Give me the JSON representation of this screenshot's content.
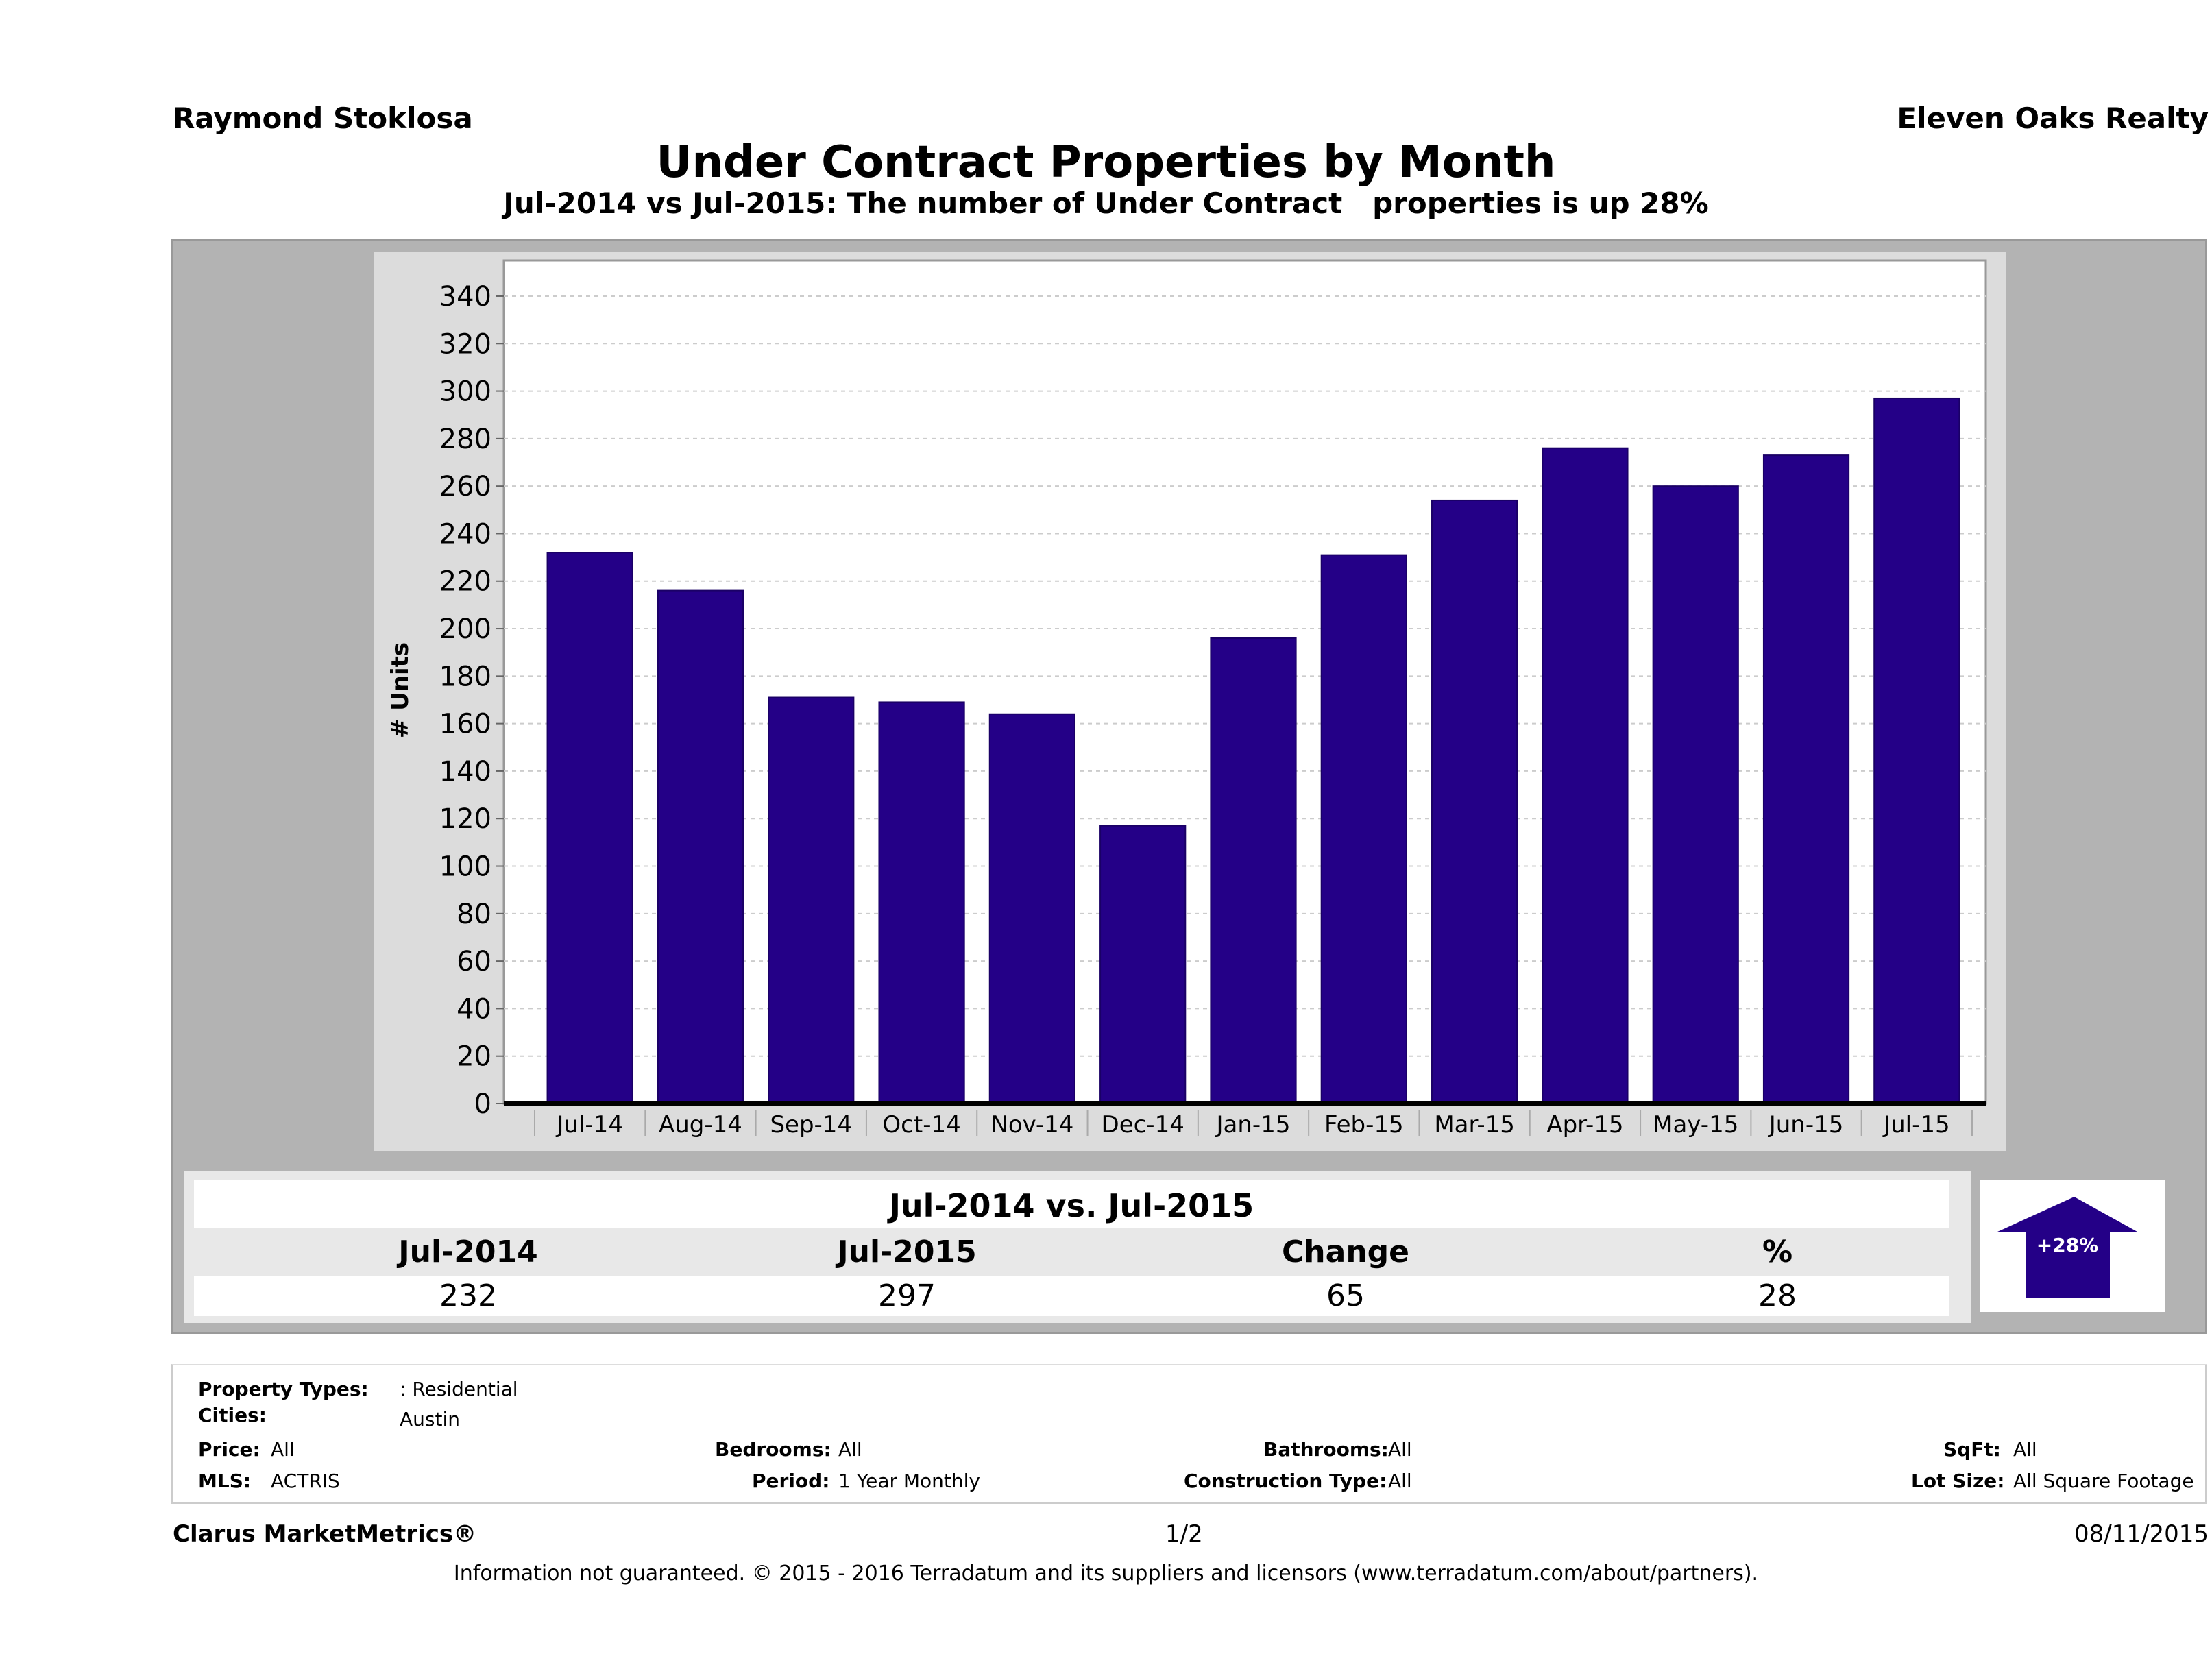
{
  "header": {
    "agent_name": "Raymond Stoklosa",
    "company_name": "Eleven Oaks Realty",
    "title": "Under Contract Properties by Month",
    "subtitle": "Jul-2014 vs Jul-2015: The number of Under Contract   properties is up 28%"
  },
  "chart_data": {
    "type": "bar",
    "title": "Under Contract Properties by Month",
    "xlabel": "",
    "ylabel": "# Units",
    "categories": [
      "Jul-14",
      "Aug-14",
      "Sep-14",
      "Oct-14",
      "Nov-14",
      "Dec-14",
      "Jan-15",
      "Feb-15",
      "Mar-15",
      "Apr-15",
      "May-15",
      "Jun-15",
      "Jul-15"
    ],
    "values": [
      232,
      216,
      171,
      169,
      164,
      117,
      196,
      231,
      254,
      276,
      260,
      273,
      297
    ],
    "ylim": [
      0,
      355
    ],
    "yticks": [
      0,
      20,
      40,
      60,
      80,
      100,
      120,
      140,
      160,
      180,
      200,
      220,
      240,
      260,
      280,
      300,
      320,
      340
    ],
    "grid": true,
    "legend": "none",
    "bar_color": "#240087"
  },
  "summary": {
    "title": "Jul-2014 vs. Jul-2015",
    "headers": [
      "Jul-2014",
      "Jul-2015",
      "Change",
      "%"
    ],
    "values": [
      "232",
      "297",
      "65",
      "28"
    ],
    "badge": "+28%",
    "badge_color": "#240087"
  },
  "filters": {
    "property_types": {
      "label": "Property Types:",
      "value": ": Residential"
    },
    "cities": {
      "label": "Cities:",
      "value": "Austin"
    },
    "price": {
      "label": "Price:",
      "value": "All"
    },
    "bedrooms": {
      "label": "Bedrooms:",
      "value": "All"
    },
    "bathrooms": {
      "label": "Bathrooms:",
      "value": "All"
    },
    "sqft": {
      "label": "SqFt:",
      "value": "All"
    },
    "mls": {
      "label": "MLS:",
      "value": "ACTRIS"
    },
    "period": {
      "label": "Period:",
      "value": "1 Year Monthly"
    },
    "construction_type": {
      "label": "Construction Type:",
      "value": "All"
    },
    "lot_size": {
      "label": "Lot Size:",
      "value": "All Square Footage"
    }
  },
  "footer": {
    "brand": "Clarus MarketMetrics®",
    "page": "1/2",
    "date": "08/11/2015",
    "disclaimer": "Information not guaranteed. © 2015 - 2016 Terradatum and its suppliers and licensors (www.terradatum.com/about/partners)."
  }
}
